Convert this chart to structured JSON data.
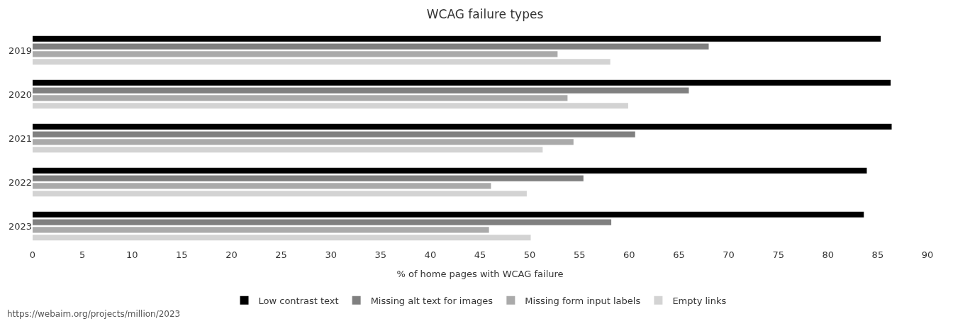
{
  "chart_data": {
    "type": "bar",
    "orientation": "horizontal",
    "title": "WCAG failure types",
    "xlabel": "% of home pages with WCAG failure",
    "categories": [
      "2019",
      "2020",
      "2021",
      "2022",
      "2023"
    ],
    "series": [
      {
        "name": "Low contrast text",
        "color": "#000000",
        "values": [
          85.3,
          86.3,
          86.4,
          83.9,
          83.6
        ]
      },
      {
        "name": "Missing alt text for images",
        "color": "#808080",
        "values": [
          68.0,
          66.0,
          60.6,
          55.4,
          58.2
        ]
      },
      {
        "name": "Missing form input labels",
        "color": "#aaaaaa",
        "values": [
          52.8,
          53.8,
          54.4,
          46.1,
          45.9
        ]
      },
      {
        "name": "Empty links",
        "color": "#d3d3d3",
        "values": [
          58.1,
          59.9,
          51.3,
          49.7,
          50.1
        ]
      }
    ],
    "xlim": [
      0,
      90
    ],
    "xticks": [
      0,
      5,
      10,
      15,
      20,
      25,
      30,
      35,
      40,
      45,
      50,
      55,
      60,
      65,
      70,
      75,
      80,
      85,
      90
    ],
    "legend": "bottom",
    "annotations": [
      "https://webaim.org/projects/million/2023"
    ]
  }
}
